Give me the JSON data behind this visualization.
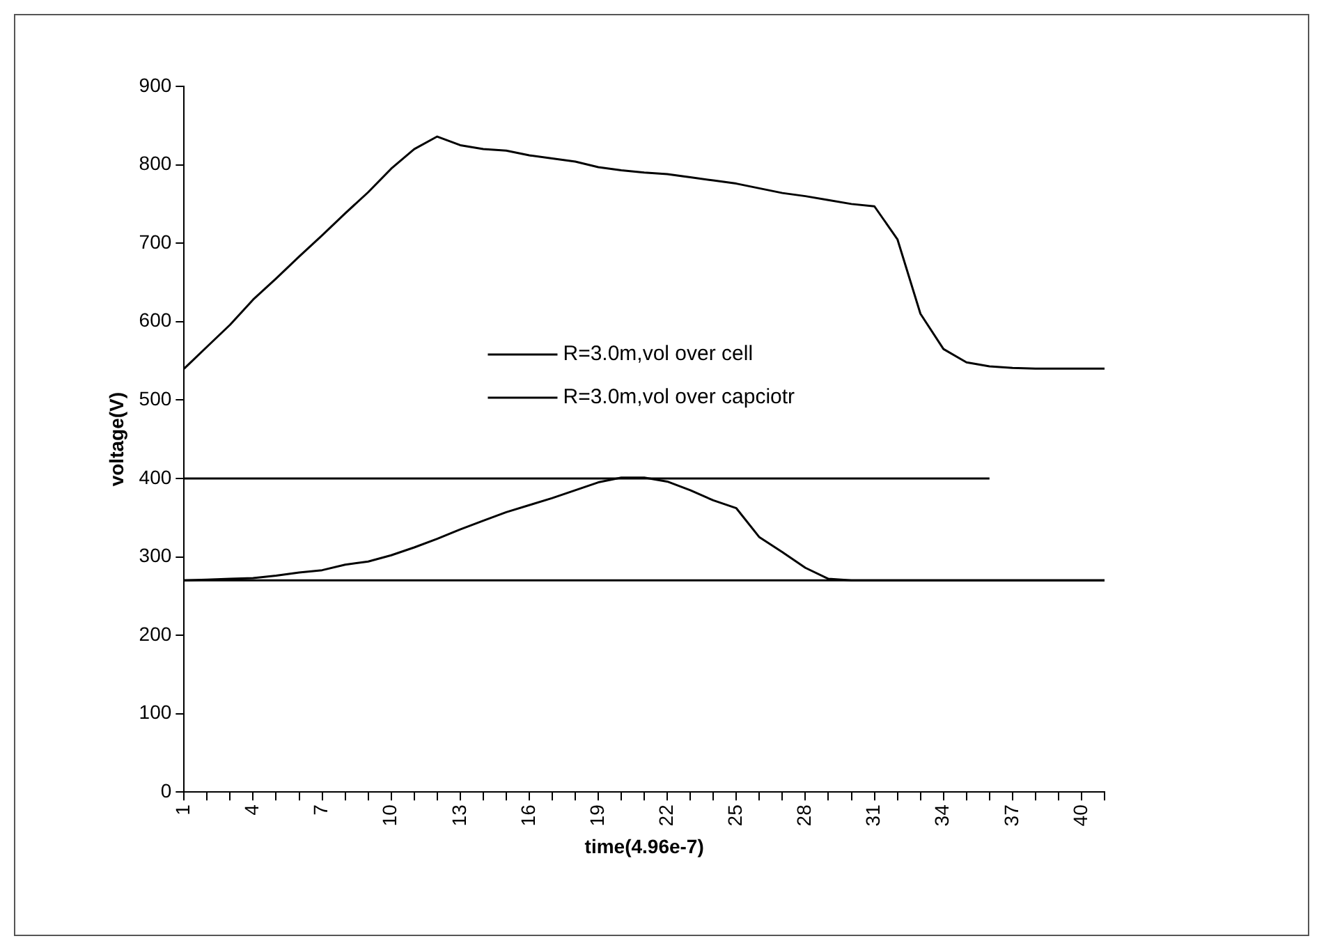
{
  "chart_data": {
    "type": "line",
    "xlabel": "time(4.96e-7)",
    "ylabel": "voltage(V)",
    "categories": [
      "1",
      null,
      null,
      "4",
      null,
      null,
      "7",
      null,
      null,
      "10",
      null,
      null,
      "13",
      null,
      null,
      "16",
      null,
      null,
      "19",
      null,
      null,
      "22",
      null,
      null,
      "25",
      null,
      null,
      "28",
      null,
      null,
      "31",
      null,
      null,
      "34",
      null,
      null,
      "37",
      null,
      null,
      "40",
      null
    ],
    "series": [
      {
        "name": "R=3.0m,vol over cell",
        "color": "#000000",
        "values": [
          540,
          568,
          596,
          628,
          655,
          683,
          710,
          738,
          765,
          795,
          820,
          836,
          825,
          820,
          818,
          812,
          808,
          804,
          797,
          793,
          790,
          788,
          784,
          780,
          776,
          770,
          764,
          760,
          755,
          750,
          747,
          705,
          610,
          565,
          548,
          543,
          541,
          540,
          540,
          540,
          540
        ]
      },
      {
        "name": "R=3.0m,vol over capciotr",
        "color": "#000000",
        "values": [
          270,
          271,
          272,
          273,
          276,
          280,
          283,
          290,
          294,
          302,
          312,
          323,
          335,
          346,
          357,
          366,
          375,
          385,
          395,
          401,
          401,
          396,
          385,
          372,
          362,
          325,
          306,
          286,
          272,
          270,
          270,
          270,
          270,
          270,
          270,
          270,
          270,
          270,
          270,
          270,
          270
        ]
      },
      {
        "color": "#000000",
        "values": [
          400,
          400,
          400,
          400,
          400,
          400,
          400,
          400,
          400,
          400,
          400,
          400,
          400,
          400,
          400,
          400,
          400,
          400,
          400,
          400,
          400,
          400,
          400,
          400,
          400,
          400,
          400,
          400,
          400,
          400,
          400,
          400,
          400,
          400,
          400,
          400,
          null,
          null,
          null,
          null,
          null
        ]
      }
    ],
    "ref_lines": [
      {
        "axis": "y",
        "value": 270,
        "color": "#000000"
      }
    ],
    "ylim": [
      0,
      900
    ],
    "yticks": [
      0,
      100,
      200,
      300,
      400,
      500,
      600,
      700,
      800,
      900
    ],
    "grid": false,
    "legend": "center",
    "marker": "none",
    "line_style": "solid"
  }
}
